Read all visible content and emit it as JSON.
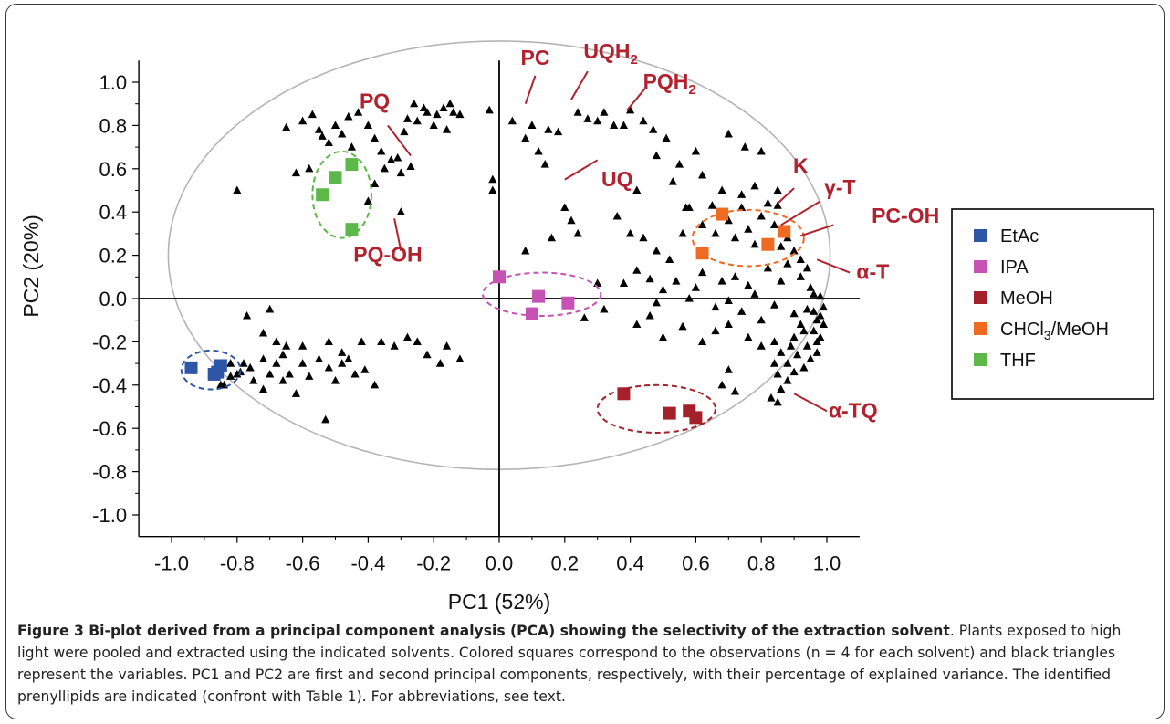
{
  "chart_data": {
    "type": "scatter",
    "xlabel": "PC1 (52%)",
    "ylabel": "PC2 (20%)",
    "xlim": [
      -1.1,
      1.1
    ],
    "ylim": [
      -1.1,
      1.1
    ],
    "x_ticks": [
      "-1.0",
      "-0.8",
      "-0.6",
      "-0.4",
      "-0.2",
      "0.0",
      "0.2",
      "0.4",
      "0.6",
      "0.8",
      "1.0"
    ],
    "y_ticks": [
      "1.0",
      "0.8",
      "0.6",
      "0.4",
      "0.2",
      "0.0",
      "-0.2",
      "-0.4",
      "-0.6",
      "-0.8",
      "-1.0"
    ],
    "legend_position": "right",
    "grid": false,
    "series": [
      {
        "name": "EtAc",
        "color": "#2e56a6",
        "marker": "square",
        "points": [
          [
            -0.94,
            -0.32
          ],
          [
            -0.87,
            -0.35
          ],
          [
            -0.86,
            -0.34
          ],
          [
            -0.85,
            -0.31
          ]
        ]
      },
      {
        "name": "IPA",
        "color": "#c653b4",
        "marker": "square",
        "points": [
          [
            0.0,
            0.1
          ],
          [
            0.12,
            0.01
          ],
          [
            0.21,
            -0.02
          ],
          [
            0.1,
            -0.07
          ]
        ]
      },
      {
        "name": "MeOH",
        "color": "#a4202a",
        "marker": "square",
        "points": [
          [
            0.38,
            -0.44
          ],
          [
            0.52,
            -0.53
          ],
          [
            0.58,
            -0.52
          ],
          [
            0.6,
            -0.55
          ]
        ]
      },
      {
        "name": "CHCl3/MeOH",
        "color": "#f06b22",
        "marker": "square",
        "points": [
          [
            0.68,
            0.39
          ],
          [
            0.62,
            0.21
          ],
          [
            0.82,
            0.25
          ],
          [
            0.87,
            0.31
          ]
        ]
      },
      {
        "name": "THF",
        "color": "#5cb848",
        "marker": "square",
        "points": [
          [
            -0.45,
            0.62
          ],
          [
            -0.5,
            0.56
          ],
          [
            -0.54,
            0.48
          ],
          [
            -0.45,
            0.32
          ]
        ]
      }
    ],
    "variables": {
      "color": "#000000",
      "marker": "triangle",
      "points": [
        [
          -0.8,
          0.5
        ],
        [
          -0.65,
          0.79
        ],
        [
          -0.6,
          0.82
        ],
        [
          -0.57,
          0.85
        ],
        [
          -0.55,
          0.78
        ],
        [
          -0.54,
          0.75
        ],
        [
          -0.52,
          0.72
        ],
        [
          -0.5,
          0.8
        ],
        [
          -0.48,
          0.76
        ],
        [
          -0.46,
          0.84
        ],
        [
          -0.45,
          0.7
        ],
        [
          -0.43,
          0.86
        ],
        [
          -0.4,
          0.8
        ],
        [
          -0.38,
          0.74
        ],
        [
          -0.36,
          0.68
        ],
        [
          -0.35,
          0.6
        ],
        [
          -0.33,
          0.64
        ],
        [
          -0.31,
          0.65
        ],
        [
          -0.29,
          0.77
        ],
        [
          -0.28,
          0.83
        ],
        [
          -0.26,
          0.9
        ],
        [
          -0.25,
          0.82
        ],
        [
          -0.23,
          0.88
        ],
        [
          -0.22,
          0.86
        ],
        [
          -0.2,
          0.8
        ],
        [
          -0.19,
          0.85
        ],
        [
          -0.17,
          0.88
        ],
        [
          -0.15,
          0.9
        ],
        [
          -0.14,
          0.86
        ],
        [
          -0.12,
          0.85
        ],
        [
          -0.16,
          0.78
        ],
        [
          -0.58,
          0.6
        ],
        [
          -0.62,
          0.58
        ],
        [
          -0.3,
          0.58
        ],
        [
          -0.27,
          0.61
        ],
        [
          -0.38,
          0.53
        ],
        [
          -0.4,
          0.45
        ],
        [
          -0.3,
          0.4
        ],
        [
          -0.03,
          0.87
        ],
        [
          -0.02,
          0.55
        ],
        [
          -0.02,
          0.5
        ],
        [
          0.04,
          0.82
        ],
        [
          0.08,
          0.74
        ],
        [
          0.1,
          0.8
        ],
        [
          0.12,
          0.68
        ],
        [
          0.15,
          0.78
        ],
        [
          0.18,
          0.77
        ],
        [
          0.14,
          0.62
        ],
        [
          0.2,
          0.42
        ],
        [
          0.22,
          0.36
        ],
        [
          0.24,
          0.3
        ],
        [
          0.16,
          0.28
        ],
        [
          0.08,
          0.22
        ],
        [
          0.24,
          0.86
        ],
        [
          0.27,
          0.83
        ],
        [
          0.3,
          0.82
        ],
        [
          0.32,
          0.86
        ],
        [
          0.35,
          0.8
        ],
        [
          0.38,
          0.8
        ],
        [
          0.4,
          0.87
        ],
        [
          0.44,
          0.82
        ],
        [
          0.47,
          0.78
        ],
        [
          0.51,
          0.74
        ],
        [
          0.55,
          0.62
        ],
        [
          0.6,
          0.68
        ],
        [
          0.7,
          0.76
        ],
        [
          0.75,
          0.7
        ],
        [
          0.8,
          0.68
        ],
        [
          0.85,
          0.5
        ],
        [
          0.48,
          0.66
        ],
        [
          0.42,
          0.5
        ],
        [
          0.53,
          0.54
        ],
        [
          0.62,
          0.57
        ],
        [
          0.68,
          0.5
        ],
        [
          0.57,
          0.42
        ],
        [
          0.65,
          0.43
        ],
        [
          0.36,
          0.38
        ],
        [
          0.4,
          0.3
        ],
        [
          0.44,
          0.28
        ],
        [
          0.48,
          0.22
        ],
        [
          0.52,
          0.18
        ],
        [
          0.56,
          0.3
        ],
        [
          0.58,
          0.42
        ],
        [
          0.62,
          0.34
        ],
        [
          0.66,
          0.3
        ],
        [
          0.7,
          0.36
        ],
        [
          0.72,
          0.28
        ],
        [
          0.74,
          0.42
        ],
        [
          0.76,
          0.32
        ],
        [
          0.78,
          0.25
        ],
        [
          0.8,
          0.38
        ],
        [
          0.82,
          0.44
        ],
        [
          0.84,
          0.34
        ],
        [
          0.86,
          0.24
        ],
        [
          0.88,
          0.28
        ],
        [
          0.9,
          0.22
        ],
        [
          0.92,
          0.18
        ],
        [
          0.94,
          0.14
        ],
        [
          0.74,
          0.48
        ],
        [
          0.78,
          0.52
        ],
        [
          0.85,
          0.43
        ],
        [
          0.3,
          0.07
        ],
        [
          0.32,
          -0.05
        ],
        [
          0.26,
          -0.09
        ],
        [
          0.38,
          0.07
        ],
        [
          0.42,
          0.13
        ],
        [
          0.46,
          0.09
        ],
        [
          0.48,
          -0.02
        ],
        [
          0.5,
          0.04
        ],
        [
          0.54,
          0.08
        ],
        [
          0.58,
          0.0
        ],
        [
          0.6,
          0.05
        ],
        [
          0.62,
          0.12
        ],
        [
          0.66,
          -0.04
        ],
        [
          0.68,
          0.08
        ],
        [
          0.7,
          -0.01
        ],
        [
          0.72,
          0.1
        ],
        [
          0.74,
          -0.06
        ],
        [
          0.76,
          0.06
        ],
        [
          0.78,
          0.02
        ],
        [
          0.8,
          -0.1
        ],
        [
          0.82,
          0.14
        ],
        [
          0.84,
          -0.03
        ],
        [
          0.86,
          0.08
        ],
        [
          0.88,
          0.16
        ],
        [
          0.9,
          -0.07
        ],
        [
          0.92,
          0.1
        ],
        [
          0.94,
          -0.05
        ],
        [
          0.96,
          0.02
        ],
        [
          0.98,
          -0.08
        ],
        [
          0.42,
          -0.12
        ],
        [
          0.46,
          -0.08
        ],
        [
          0.5,
          -0.18
        ],
        [
          0.56,
          -0.13
        ],
        [
          0.62,
          -0.2
        ],
        [
          0.66,
          -0.15
        ],
        [
          0.7,
          -0.12
        ],
        [
          0.76,
          -0.18
        ],
        [
          0.8,
          -0.22
        ],
        [
          0.84,
          -0.2
        ],
        [
          0.86,
          -0.25
        ],
        [
          0.88,
          -0.3
        ],
        [
          0.9,
          -0.18
        ],
        [
          0.92,
          -0.12
        ],
        [
          0.94,
          -0.22
        ],
        [
          0.96,
          -0.15
        ],
        [
          0.97,
          -0.25
        ],
        [
          0.98,
          -0.18
        ],
        [
          0.95,
          -0.28
        ],
        [
          0.93,
          -0.32
        ],
        [
          0.91,
          -0.26
        ],
        [
          0.89,
          -0.22
        ],
        [
          0.96,
          -0.06
        ],
        [
          0.97,
          -0.1
        ],
        [
          0.98,
          0.01
        ],
        [
          0.95,
          0.05
        ],
        [
          0.93,
          -0.15
        ],
        [
          0.99,
          -0.12
        ],
        [
          0.97,
          -0.2
        ],
        [
          0.99,
          -0.04
        ],
        [
          0.84,
          -0.3
        ],
        [
          0.85,
          -0.35
        ],
        [
          0.86,
          -0.42
        ],
        [
          0.88,
          -0.38
        ],
        [
          0.83,
          -0.46
        ],
        [
          0.85,
          -0.48
        ],
        [
          0.9,
          -0.34
        ],
        [
          0.72,
          -0.43
        ],
        [
          0.68,
          -0.4
        ],
        [
          0.7,
          -0.33
        ],
        [
          -0.84,
          -0.4
        ],
        [
          -0.82,
          -0.3
        ],
        [
          -0.8,
          -0.35
        ],
        [
          -0.78,
          -0.3
        ],
        [
          -0.76,
          -0.32
        ],
        [
          -0.75,
          -0.38
        ],
        [
          -0.72,
          -0.42
        ],
        [
          -0.7,
          -0.35
        ],
        [
          -0.68,
          -0.3
        ],
        [
          -0.66,
          -0.38
        ],
        [
          -0.64,
          -0.35
        ],
        [
          -0.62,
          -0.44
        ],
        [
          -0.6,
          -0.3
        ],
        [
          -0.58,
          -0.36
        ],
        [
          -0.55,
          -0.28
        ],
        [
          -0.52,
          -0.32
        ],
        [
          -0.5,
          -0.38
        ],
        [
          -0.48,
          -0.3
        ],
        [
          -0.46,
          -0.28
        ],
        [
          -0.44,
          -0.35
        ],
        [
          -0.41,
          -0.33
        ],
        [
          -0.38,
          -0.4
        ],
        [
          -0.36,
          -0.2
        ],
        [
          -0.65,
          -0.22
        ],
        [
          -0.68,
          -0.2
        ],
        [
          -0.72,
          -0.16
        ],
        [
          -0.77,
          -0.08
        ],
        [
          -0.7,
          -0.05
        ],
        [
          -0.85,
          -0.4
        ],
        [
          -0.82,
          -0.36
        ],
        [
          -0.79,
          -0.34
        ],
        [
          -0.72,
          -0.28
        ],
        [
          -0.66,
          -0.26
        ],
        [
          -0.6,
          -0.22
        ],
        [
          -0.52,
          -0.2
        ],
        [
          -0.48,
          -0.25
        ],
        [
          -0.42,
          -0.2
        ],
        [
          -0.32,
          -0.22
        ],
        [
          -0.28,
          -0.18
        ],
        [
          -0.25,
          -0.2
        ],
        [
          -0.22,
          -0.26
        ],
        [
          -0.18,
          -0.3
        ],
        [
          -0.16,
          -0.22
        ],
        [
          -0.12,
          -0.28
        ],
        [
          -0.53,
          -0.56
        ]
      ]
    },
    "ellipses": [
      {
        "group": "EtAc",
        "color": "#2e56a6",
        "cx": -0.88,
        "cy": -0.33,
        "rx": 0.09,
        "ry": 0.09
      },
      {
        "group": "IPA",
        "color": "#c653b4",
        "cx": 0.13,
        "cy": 0.02,
        "rx": 0.18,
        "ry": 0.1
      },
      {
        "group": "MeOH",
        "color": "#a4202a",
        "cx": 0.48,
        "cy": -0.51,
        "rx": 0.18,
        "ry": 0.11
      },
      {
        "group": "CHCl3/MeOH",
        "color": "#f06b22",
        "cx": 0.76,
        "cy": 0.28,
        "rx": 0.17,
        "ry": 0.13
      },
      {
        "group": "THF",
        "color": "#5cb848",
        "cx": -0.48,
        "cy": 0.48,
        "rx": 0.09,
        "ry": 0.2
      }
    ],
    "confidence_ellipse": {
      "cx": 0.0,
      "cy": 0.2,
      "rx": 1.01,
      "ry": 0.99,
      "color": "#b5b5b5"
    },
    "annotations": [
      {
        "id": "pq",
        "text": "PQ",
        "sub": "",
        "text_at": [
          -0.38,
          0.88
        ],
        "line": [
          [
            -0.34,
            0.8
          ],
          [
            -0.27,
            0.66
          ]
        ]
      },
      {
        "id": "pq-oh",
        "text": "PQ-OH",
        "sub": "",
        "text_at": [
          -0.34,
          0.17
        ],
        "line": [
          [
            -0.3,
            0.22
          ],
          [
            -0.32,
            0.37
          ]
        ]
      },
      {
        "id": "pc",
        "text": "PC",
        "sub": "",
        "text_at": [
          0.11,
          1.08
        ],
        "line": [
          [
            0.11,
            1.03
          ],
          [
            0.08,
            0.9
          ]
        ]
      },
      {
        "id": "uqh2",
        "text": "UQH",
        "sub": "2",
        "text_at": [
          0.34,
          1.11
        ],
        "line": [
          [
            0.27,
            1.05
          ],
          [
            0.22,
            0.92
          ]
        ]
      },
      {
        "id": "pqh2",
        "text": "PQH",
        "sub": "2",
        "text_at": [
          0.52,
          0.97
        ],
        "line": [
          [
            0.45,
            0.98
          ],
          [
            0.39,
            0.87
          ]
        ]
      },
      {
        "id": "uq",
        "text": "UQ",
        "sub": "",
        "text_at": [
          0.36,
          0.52
        ],
        "line": [
          [
            0.2,
            0.55
          ],
          [
            0.3,
            0.64
          ]
        ]
      },
      {
        "id": "k",
        "text": "K",
        "sub": "",
        "text_at": [
          0.92,
          0.58
        ],
        "line": [
          [
            0.9,
            0.51
          ],
          [
            0.85,
            0.44
          ]
        ]
      },
      {
        "id": "gamma-t",
        "text": "γ-T",
        "sub": "",
        "text_at": [
          1.04,
          0.48
        ],
        "line": [
          [
            0.98,
            0.45
          ],
          [
            0.86,
            0.34
          ]
        ]
      },
      {
        "id": "pc-oh",
        "text": "PC-OH",
        "sub": "",
        "text_at": [
          1.24,
          0.35
        ],
        "line": [
          [
            1.02,
            0.34
          ],
          [
            0.92,
            0.29
          ]
        ]
      },
      {
        "id": "alpha-t",
        "text": "α-T",
        "sub": "",
        "text_at": [
          1.14,
          0.09
        ],
        "line": [
          [
            1.07,
            0.12
          ],
          [
            0.97,
            0.18
          ]
        ]
      },
      {
        "id": "alpha-tq",
        "text": "α-TQ",
        "sub": "",
        "text_at": [
          1.08,
          -0.55
        ],
        "line": [
          [
            1.0,
            -0.52
          ],
          [
            0.9,
            -0.44
          ]
        ]
      }
    ],
    "annotation_color": "#b1212e"
  },
  "legend": [
    {
      "label": "EtAc",
      "sub": "",
      "tail": "",
      "color": "#2e56a6"
    },
    {
      "label": "IPA",
      "sub": "",
      "tail": "",
      "color": "#c653b4"
    },
    {
      "label": "MeOH",
      "sub": "",
      "tail": "",
      "color": "#a4202a"
    },
    {
      "label": "CHCl",
      "sub": "3",
      "tail": "/MeOH",
      "color": "#f06b22"
    },
    {
      "label": "THF",
      "sub": "",
      "tail": "",
      "color": "#5cb848"
    }
  ],
  "caption": {
    "title": "Figure 3 Bi-plot derived from a principal component analysis (PCA) showing the selectivity of the extraction solvent",
    "body": ". Plants exposed to high light were pooled and extracted using the indicated solvents. Colored squares correspond to the observations (n = 4 for each solvent) and black triangles represent the variables. PC1 and PC2 are first and second principal components, respectively, with their percentage of explained variance. The identified prenyllipids are indicated (confront with Table 1). For abbreviations, see text."
  }
}
